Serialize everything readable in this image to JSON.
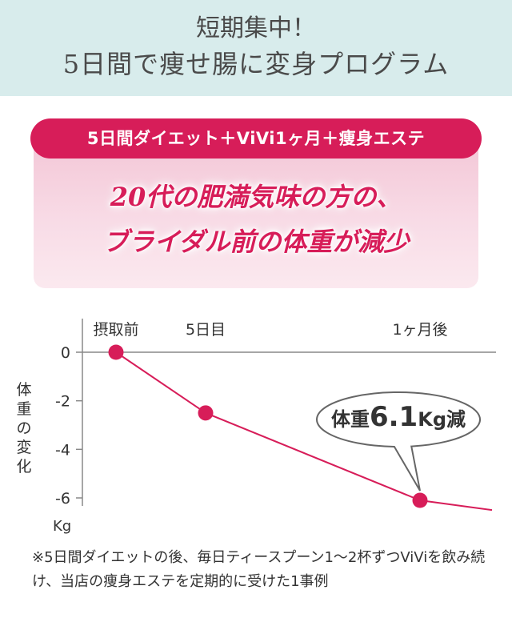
{
  "header": {
    "line1": "短期集中！",
    "line2": "5日間で痩せ腸に変身プログラム"
  },
  "banner": {
    "label": "5日間ダイエット＋ViVi1ヶ月＋痩身エステ"
  },
  "headline": {
    "line1": "20代の肥満気味の方の、",
    "line2": "ブライダル前の体重が減少"
  },
  "colors": {
    "accent": "#d71d59",
    "header_bg": "#d8ecec",
    "panel_pink": "#f3c6d6",
    "axis_gray": "#888888"
  },
  "chart_data": {
    "type": "line",
    "x_labels": [
      "摂取前",
      "5日目",
      "1ヶ月後"
    ],
    "points": [
      {
        "label": "摂取前",
        "value": 0
      },
      {
        "label": "5日目",
        "value": -2.5
      },
      {
        "label": "1ヶ月後",
        "value": -6.1
      }
    ],
    "trailing_value": -6.5,
    "y_ticks": [
      0,
      -2,
      -4,
      -6
    ],
    "ylim": [
      -6.6,
      0.5
    ],
    "ylabel": "体重の変化",
    "yunit": "Kg",
    "callout": {
      "prefix": "体重",
      "value": "6.1",
      "suffix": "Kg減"
    }
  },
  "footnote": "※5日間ダイエットの後、毎日ティースプーン1〜2杯ずつViViを飲み続け、当店の痩身エステを定期的に受けた1事例"
}
